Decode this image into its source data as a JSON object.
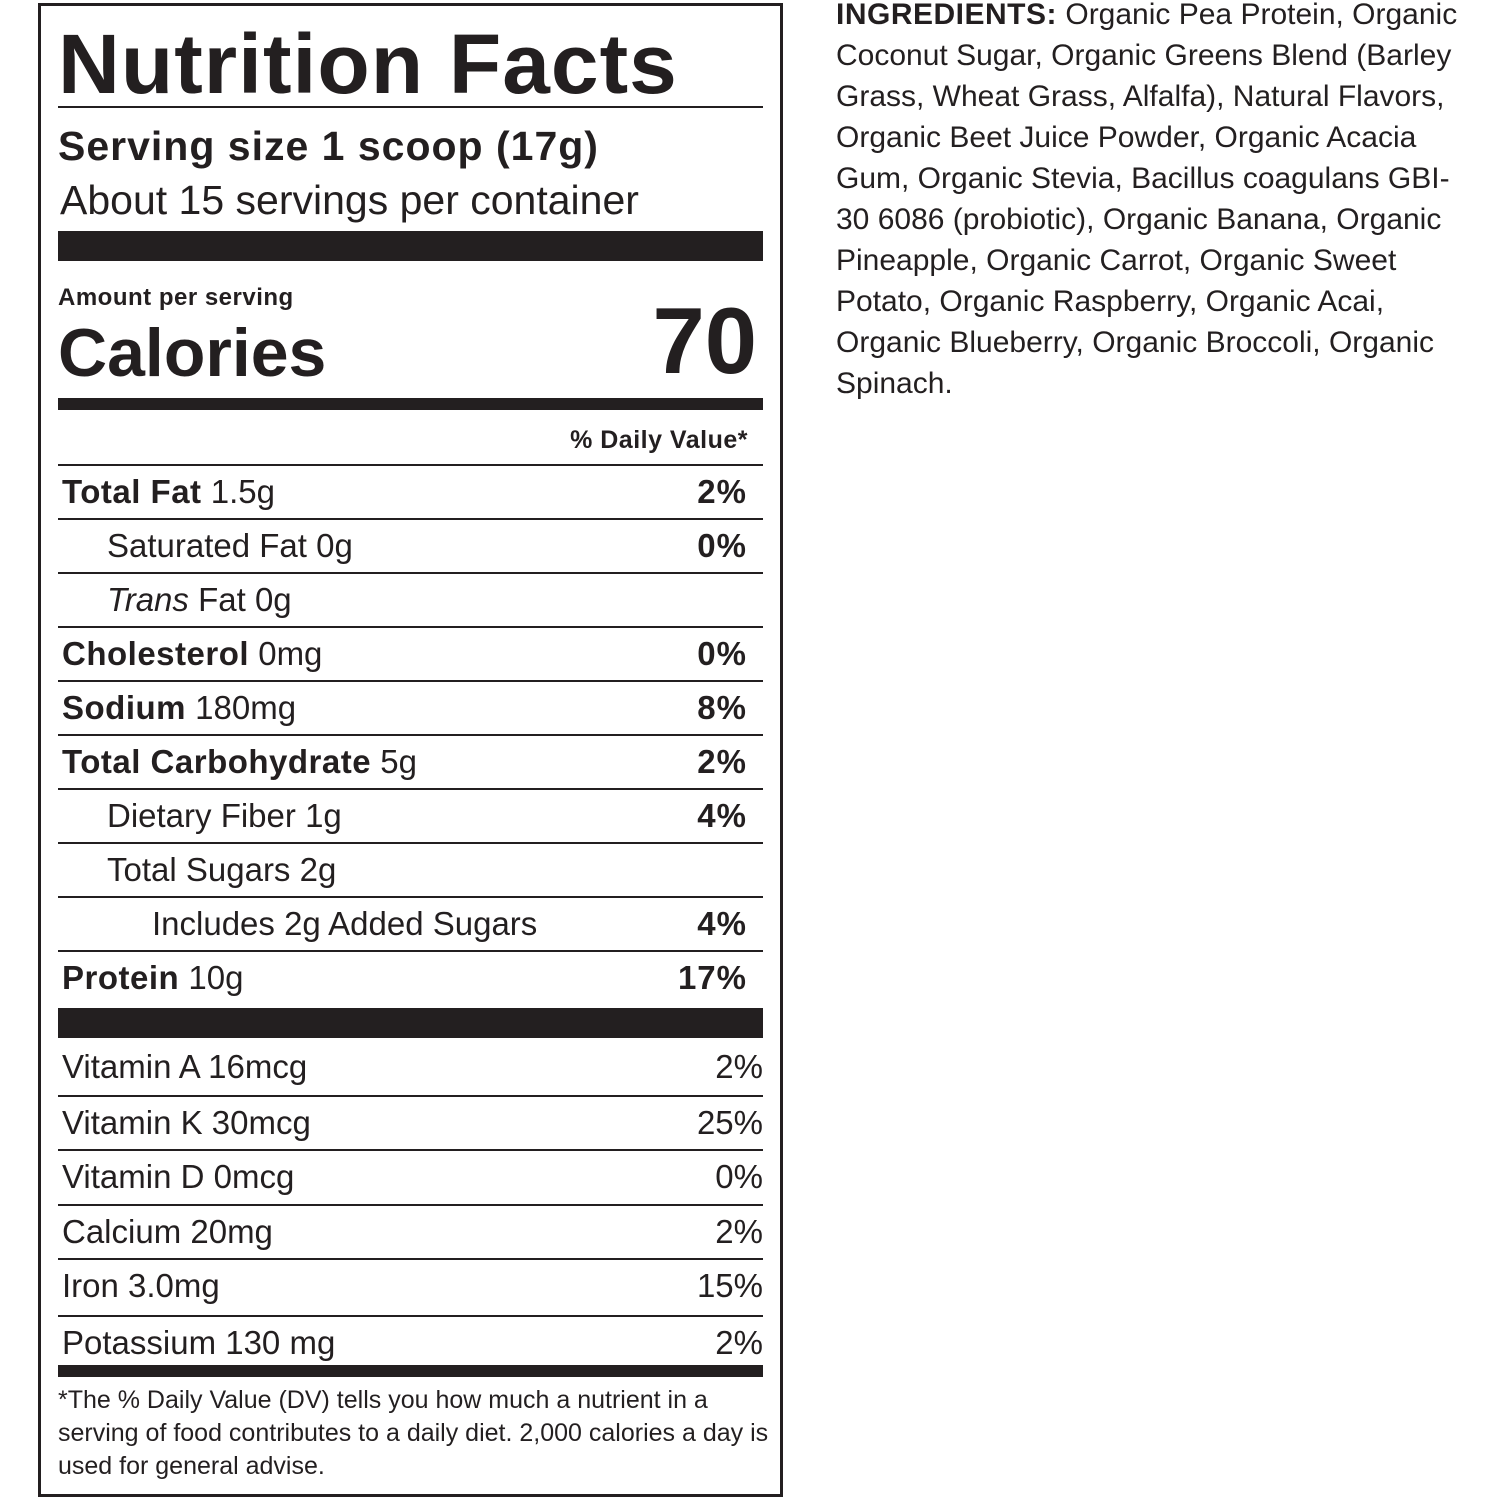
{
  "label": {
    "title": "Nutrition Facts",
    "serving_size": "Serving size 1 scoop (17g)",
    "servings_per_container": "About 15 servings per container",
    "amount_per_serving": "Amount per serving",
    "calories_label": "Calories",
    "calories_value": "70",
    "daily_value_header": "% Daily Value*",
    "nutrients": [
      {
        "name": "Total Fat",
        "amount": "1.5g",
        "dv": "2%",
        "bold": true,
        "indent": 0
      },
      {
        "name": "Saturated Fat",
        "amount": "0g",
        "dv": "0%",
        "bold": false,
        "indent": 1
      },
      {
        "name": "Trans",
        "name_rest": "Fat",
        "amount": "0g",
        "dv": "",
        "bold": false,
        "indent": 1,
        "italic": true
      },
      {
        "name": "Cholesterol",
        "amount": "0mg",
        "dv": "0%",
        "bold": true,
        "indent": 0
      },
      {
        "name": "Sodium",
        "amount": "180mg",
        "dv": "8%",
        "bold": true,
        "indent": 0
      },
      {
        "name": "Total Carbohydrate",
        "amount": "5g",
        "dv": "2%",
        "bold": true,
        "indent": 0
      },
      {
        "name": "Dietary Fiber",
        "amount": "1g",
        "dv": "4%",
        "bold": false,
        "indent": 1
      },
      {
        "name": "Total Sugars",
        "amount": "2g",
        "dv": "",
        "bold": false,
        "indent": 1
      },
      {
        "name": "Includes 2g Added Sugars",
        "amount": "",
        "dv": "4%",
        "bold": false,
        "indent": 2
      },
      {
        "name": "Protein",
        "amount": "10g",
        "dv": "17%",
        "bold": true,
        "indent": 0
      }
    ],
    "vitamins": [
      {
        "text": "Vitamin A 16mcg",
        "dv": "2%"
      },
      {
        "text": "Vitamin K 30mcg",
        "dv": "25%"
      },
      {
        "text": "Vitamin D 0mcg",
        "dv": "0%"
      },
      {
        "text": "Calcium 20mg",
        "dv": "2%"
      },
      {
        "text": "Iron 3.0mg",
        "dv": "15%"
      },
      {
        "text": "Potassium 130 mg",
        "dv": "2%"
      }
    ],
    "footnote": "*The % Daily Value (DV) tells you how much a nutrient in a serving of food contributes to a daily diet. 2,000 calories a day is used for general advise."
  },
  "ingredients": {
    "heading": "INGREDIENTS:",
    "text": "Organic Pea Protein, Organic Coconut Sugar, Organic Greens Blend (Barley Grass, Wheat Grass, Alfalfa), Natural Flavors, Organic Beet Juice Powder, Organic Acacia Gum, Organic Stevia, Bacillus coagulans GBI-30 6086 (probiotic), Organic Banana, Organic Pineapple, Organic Carrot, Organic Sweet Potato, Organic Raspberry, Organic Acai, Organic Blueberry, Organic Broccoli, Organic Spinach."
  }
}
